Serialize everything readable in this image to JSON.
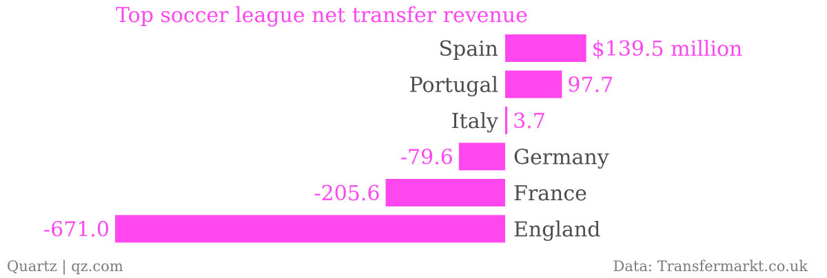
{
  "colors": {
    "accent": "#ff47f0",
    "text": "#4d4d4d",
    "footer": "#7a7a7a",
    "background": "#ffffff"
  },
  "chart_data": {
    "type": "bar",
    "orientation": "horizontal",
    "title": "Top soccer league net transfer revenue",
    "categories": [
      "Spain",
      "Portugal",
      "Italy",
      "Germany",
      "France",
      "England"
    ],
    "values": [
      139.5,
      97.7,
      3.7,
      -79.6,
      -205.6,
      -671.0
    ],
    "value_labels": [
      "$139.5 million",
      "97.7",
      "3.7",
      "-79.6",
      "-205.6",
      "-671.0"
    ],
    "xlim": [
      -671.0,
      139.5
    ],
    "grid": false,
    "legend": "none"
  },
  "footer": {
    "source_left": "Quartz | qz.com",
    "source_right": "Data: Transfermarkt.co.uk"
  }
}
